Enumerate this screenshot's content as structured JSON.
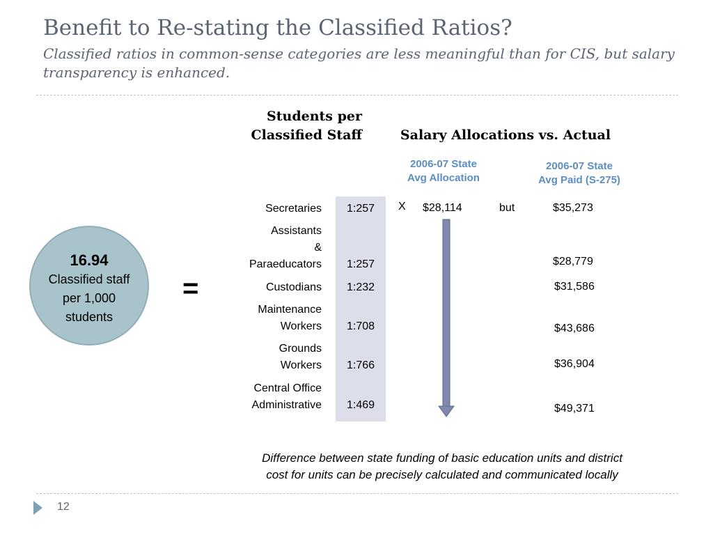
{
  "slide": {
    "title": "Benefit to Re-stating the Classified Ratios?",
    "subtitle": "Classified ratios in common-sense categories are less meaningful than for CIS, but salary transparency is enhanced."
  },
  "table": {
    "ratio_header_line1": "Students per",
    "ratio_header_line2": "Classified Staff",
    "salary_header": "Salary Allocations vs. Actual",
    "allocation_header_line1": "2006-07 State",
    "allocation_header_line2": "Avg Allocation",
    "paid_header_line1": "2006-07 State",
    "paid_header_line2": "Avg Paid (S-275)",
    "multiply_symbol": "X",
    "allocation_value": "$28,114",
    "but_label": "but",
    "rows": [
      {
        "category_lines": [
          "Secretaries"
        ],
        "ratio": "1:257",
        "paid": "$35,273"
      },
      {
        "category_lines": [
          "Assistants",
          "&",
          "Paraeducators"
        ],
        "ratio": "1:257",
        "paid": "$28,779"
      },
      {
        "category_lines": [
          "Custodians"
        ],
        "ratio": "1:232",
        "paid": "$31,586"
      },
      {
        "category_lines": [
          "Maintenance",
          "Workers"
        ],
        "ratio": "1:708",
        "paid": "$43,686"
      },
      {
        "category_lines": [
          "Grounds",
          "Workers"
        ],
        "ratio": "1:766",
        "paid": "$36,904"
      },
      {
        "category_lines": [
          "Central Office",
          "Administrative"
        ],
        "ratio": "1:469",
        "paid": "$49,371"
      }
    ]
  },
  "summary": {
    "value": "16.94",
    "line1": "Classified staff",
    "line2": "per 1,000",
    "line3": "students",
    "equals": "="
  },
  "footer": {
    "note_line1": "Difference between state funding of basic education units and district",
    "note_line2": "cost for units can be precisely calculated and communicated locally",
    "page_number": "12"
  },
  "colors": {
    "title": "#5a6472",
    "sub_header": "#5b8ec4",
    "band": "#dcdfe9",
    "circle": "#a8c3c9",
    "arrow": "#7f89ab"
  }
}
